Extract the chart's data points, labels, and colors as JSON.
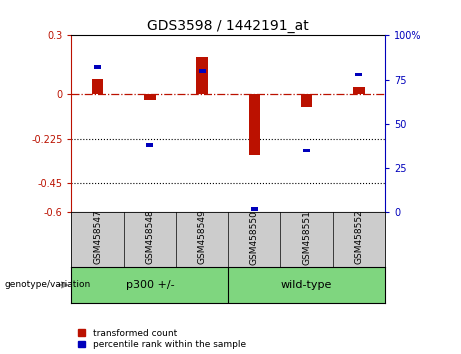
{
  "title": "GDS3598 / 1442191_at",
  "samples": [
    "GSM458547",
    "GSM458548",
    "GSM458549",
    "GSM458550",
    "GSM458551",
    "GSM458552"
  ],
  "transformed_counts": [
    0.08,
    -0.03,
    0.19,
    -0.31,
    -0.065,
    0.04
  ],
  "percentile_ranks": [
    82,
    38,
    80,
    2,
    35,
    78
  ],
  "left_ylim": [
    -0.6,
    0.3
  ],
  "right_ylim": [
    0,
    100
  ],
  "left_yticks": [
    -0.6,
    -0.45,
    -0.225,
    0,
    0.3
  ],
  "right_yticks": [
    0,
    25,
    50,
    75,
    100
  ],
  "left_ytick_labels": [
    "-0.6",
    "-0.45",
    "-0.225",
    "0",
    "0.3"
  ],
  "right_ytick_labels": [
    "0",
    "25",
    "50",
    "75",
    "100%"
  ],
  "hline_y": 0,
  "dotted_lines": [
    -0.225,
    -0.45
  ],
  "bar_color_red": "#BB1100",
  "bar_color_blue": "#0000BB",
  "bar_width": 0.22,
  "blue_marker_size": 6,
  "legend_entries": [
    "transformed count",
    "percentile rank within the sample"
  ],
  "genotype_label": "genotype/variation",
  "background_color": "#ffffff",
  "plot_bg_color": "#ffffff",
  "label_bg_color": "#cccccc",
  "group_bg_color": "#7FD67F",
  "group1_label": "p300 +/-",
  "group2_label": "wild-type",
  "group1_indices": [
    0,
    1,
    2
  ],
  "group2_indices": [
    3,
    4,
    5
  ]
}
